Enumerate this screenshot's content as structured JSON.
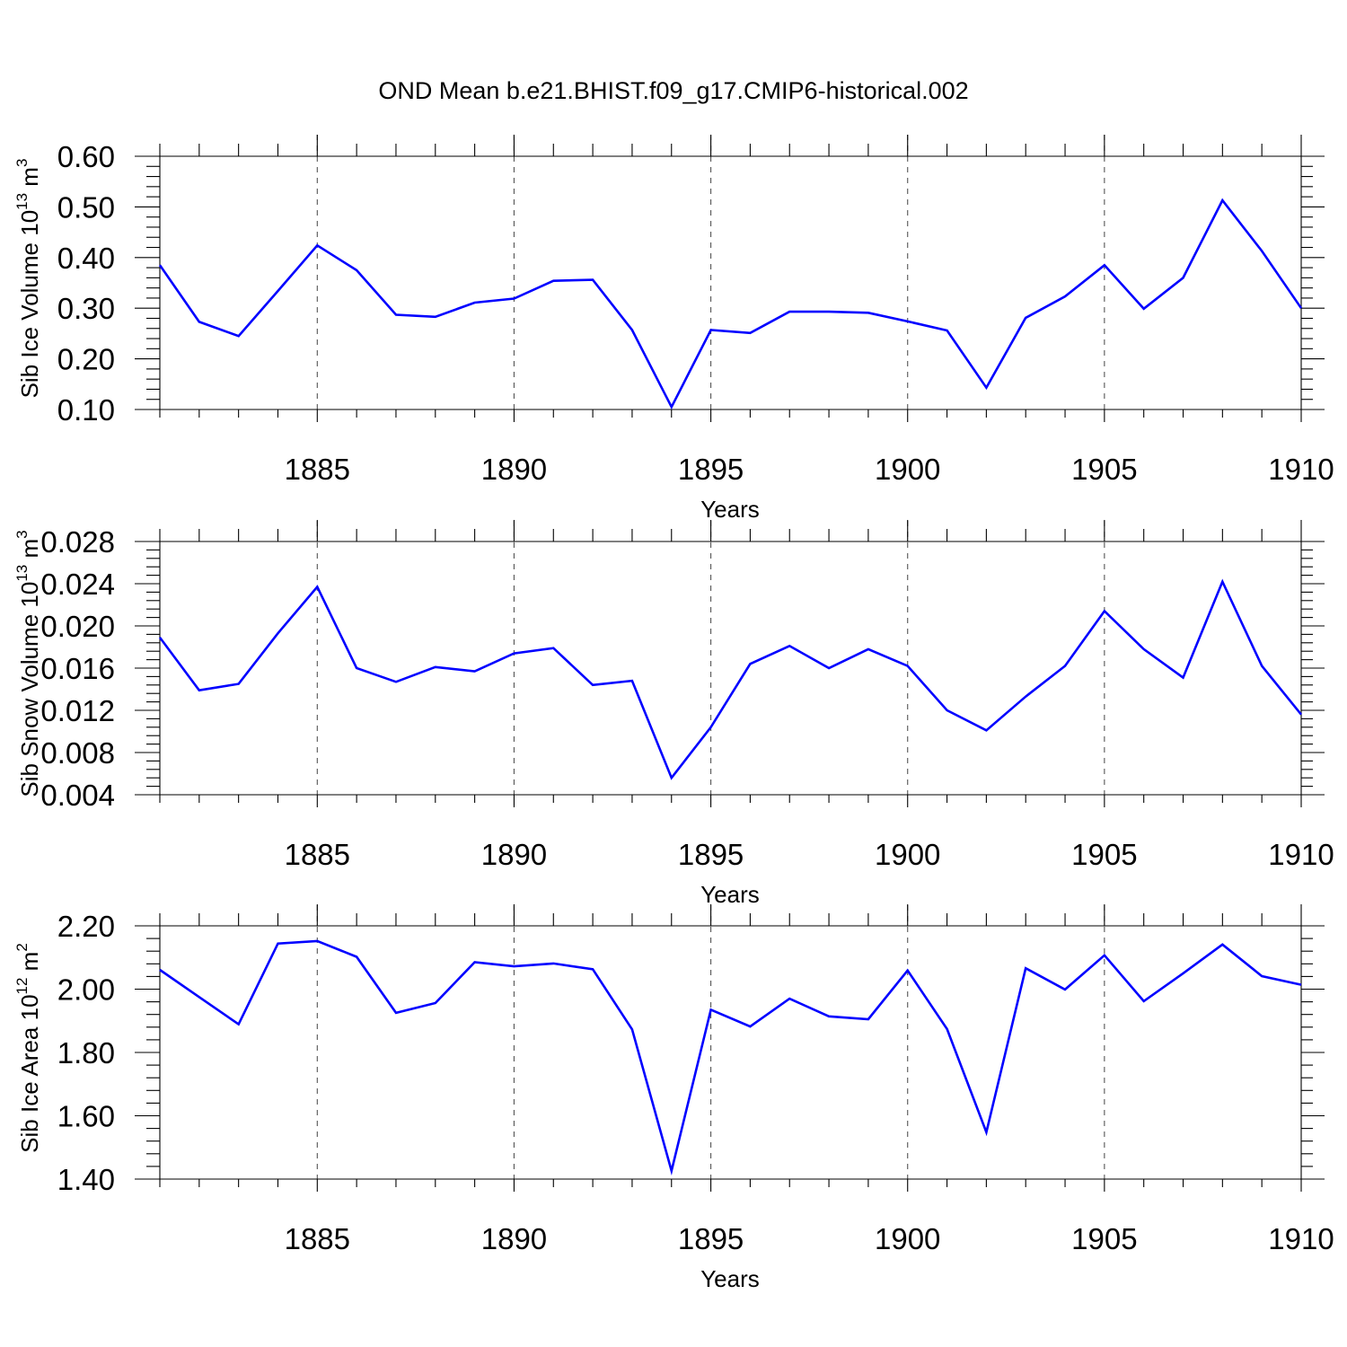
{
  "title": "OND Mean b.e21.BHIST.f09_g17.CMIP6-historical.002",
  "colors": {
    "series": "#0000ff",
    "axis": "#000000",
    "grid": "#555555"
  },
  "chart_data": [
    {
      "type": "line",
      "ylabel_main": "Sib Ice Volume 10",
      "ylabel_exp": "13",
      "ylabel_unit": "m",
      "ylabel_unit_exp": "3",
      "xlabel": "Years",
      "xlim": [
        1881,
        1910
      ],
      "ylim": [
        0.1,
        0.6
      ],
      "xticks": [
        1885,
        1890,
        1895,
        1900,
        1905,
        1910
      ],
      "yticks": [
        "0.10",
        "0.20",
        "0.30",
        "0.40",
        "0.50",
        "0.60"
      ],
      "series": [
        {
          "name": "Sib Ice Volume",
          "x": [
            1881,
            1882,
            1883,
            1884,
            1885,
            1886,
            1887,
            1888,
            1889,
            1890,
            1891,
            1892,
            1893,
            1894,
            1895,
            1896,
            1897,
            1898,
            1899,
            1900,
            1901,
            1902,
            1903,
            1904,
            1905,
            1906,
            1907,
            1908,
            1909,
            1910
          ],
          "values": [
            0.385,
            0.273,
            0.245,
            0.334,
            0.424,
            0.375,
            0.287,
            0.283,
            0.311,
            0.319,
            0.354,
            0.356,
            0.257,
            0.105,
            0.257,
            0.251,
            0.293,
            0.293,
            0.291,
            0.274,
            0.256,
            0.143,
            0.281,
            0.323,
            0.385,
            0.299,
            0.36,
            0.513,
            0.413,
            0.3
          ]
        }
      ]
    },
    {
      "type": "line",
      "ylabel_main": "Sib Snow Volume 10",
      "ylabel_exp": "13",
      "ylabel_unit": "m",
      "ylabel_unit_exp": "3",
      "xlabel": "Years",
      "xlim": [
        1881,
        1910
      ],
      "ylim": [
        0.004,
        0.028
      ],
      "xticks": [
        1885,
        1890,
        1895,
        1900,
        1905,
        1910
      ],
      "yticks": [
        "0.004",
        "0.008",
        "0.012",
        "0.016",
        "0.020",
        "0.024",
        "0.028"
      ],
      "series": [
        {
          "name": "Sib Snow Volume",
          "x": [
            1881,
            1882,
            1883,
            1884,
            1885,
            1886,
            1887,
            1888,
            1889,
            1890,
            1891,
            1892,
            1893,
            1894,
            1895,
            1896,
            1897,
            1898,
            1899,
            1900,
            1901,
            1902,
            1903,
            1904,
            1905,
            1906,
            1907,
            1908,
            1909,
            1910
          ],
          "values": [
            0.0189,
            0.0139,
            0.0145,
            0.0193,
            0.0237,
            0.016,
            0.0147,
            0.0161,
            0.0157,
            0.0174,
            0.0179,
            0.0144,
            0.0148,
            0.0056,
            0.0104,
            0.0164,
            0.0181,
            0.016,
            0.0178,
            0.0162,
            0.012,
            0.0101,
            0.0133,
            0.0162,
            0.0214,
            0.0178,
            0.0151,
            0.0242,
            0.0162,
            0.0116
          ]
        }
      ]
    },
    {
      "type": "line",
      "ylabel_main": "Sib Ice Area 10",
      "ylabel_exp": "12",
      "ylabel_unit": "m",
      "ylabel_unit_exp": "2",
      "xlabel": "Years",
      "xlim": [
        1881,
        1910
      ],
      "ylim": [
        1.4,
        2.2
      ],
      "xticks": [
        1885,
        1890,
        1895,
        1900,
        1905,
        1910
      ],
      "yticks": [
        "1.40",
        "1.60",
        "1.80",
        "2.00",
        "2.20"
      ],
      "series": [
        {
          "name": "Sib Ice Area",
          "x": [
            1881,
            1882,
            1883,
            1884,
            1885,
            1886,
            1887,
            1888,
            1889,
            1890,
            1891,
            1892,
            1893,
            1894,
            1895,
            1896,
            1897,
            1898,
            1899,
            1900,
            1901,
            1902,
            1903,
            1904,
            1905,
            1906,
            1907,
            1908,
            1909,
            1910
          ],
          "values": [
            2.061,
            1.975,
            1.889,
            2.144,
            2.152,
            2.102,
            1.925,
            1.956,
            2.085,
            2.072,
            2.081,
            2.063,
            1.873,
            1.426,
            1.935,
            1.882,
            1.97,
            1.914,
            1.905,
            2.059,
            1.874,
            1.548,
            2.066,
            1.999,
            2.107,
            1.962,
            2.05,
            2.141,
            2.041,
            2.014
          ]
        }
      ]
    }
  ]
}
